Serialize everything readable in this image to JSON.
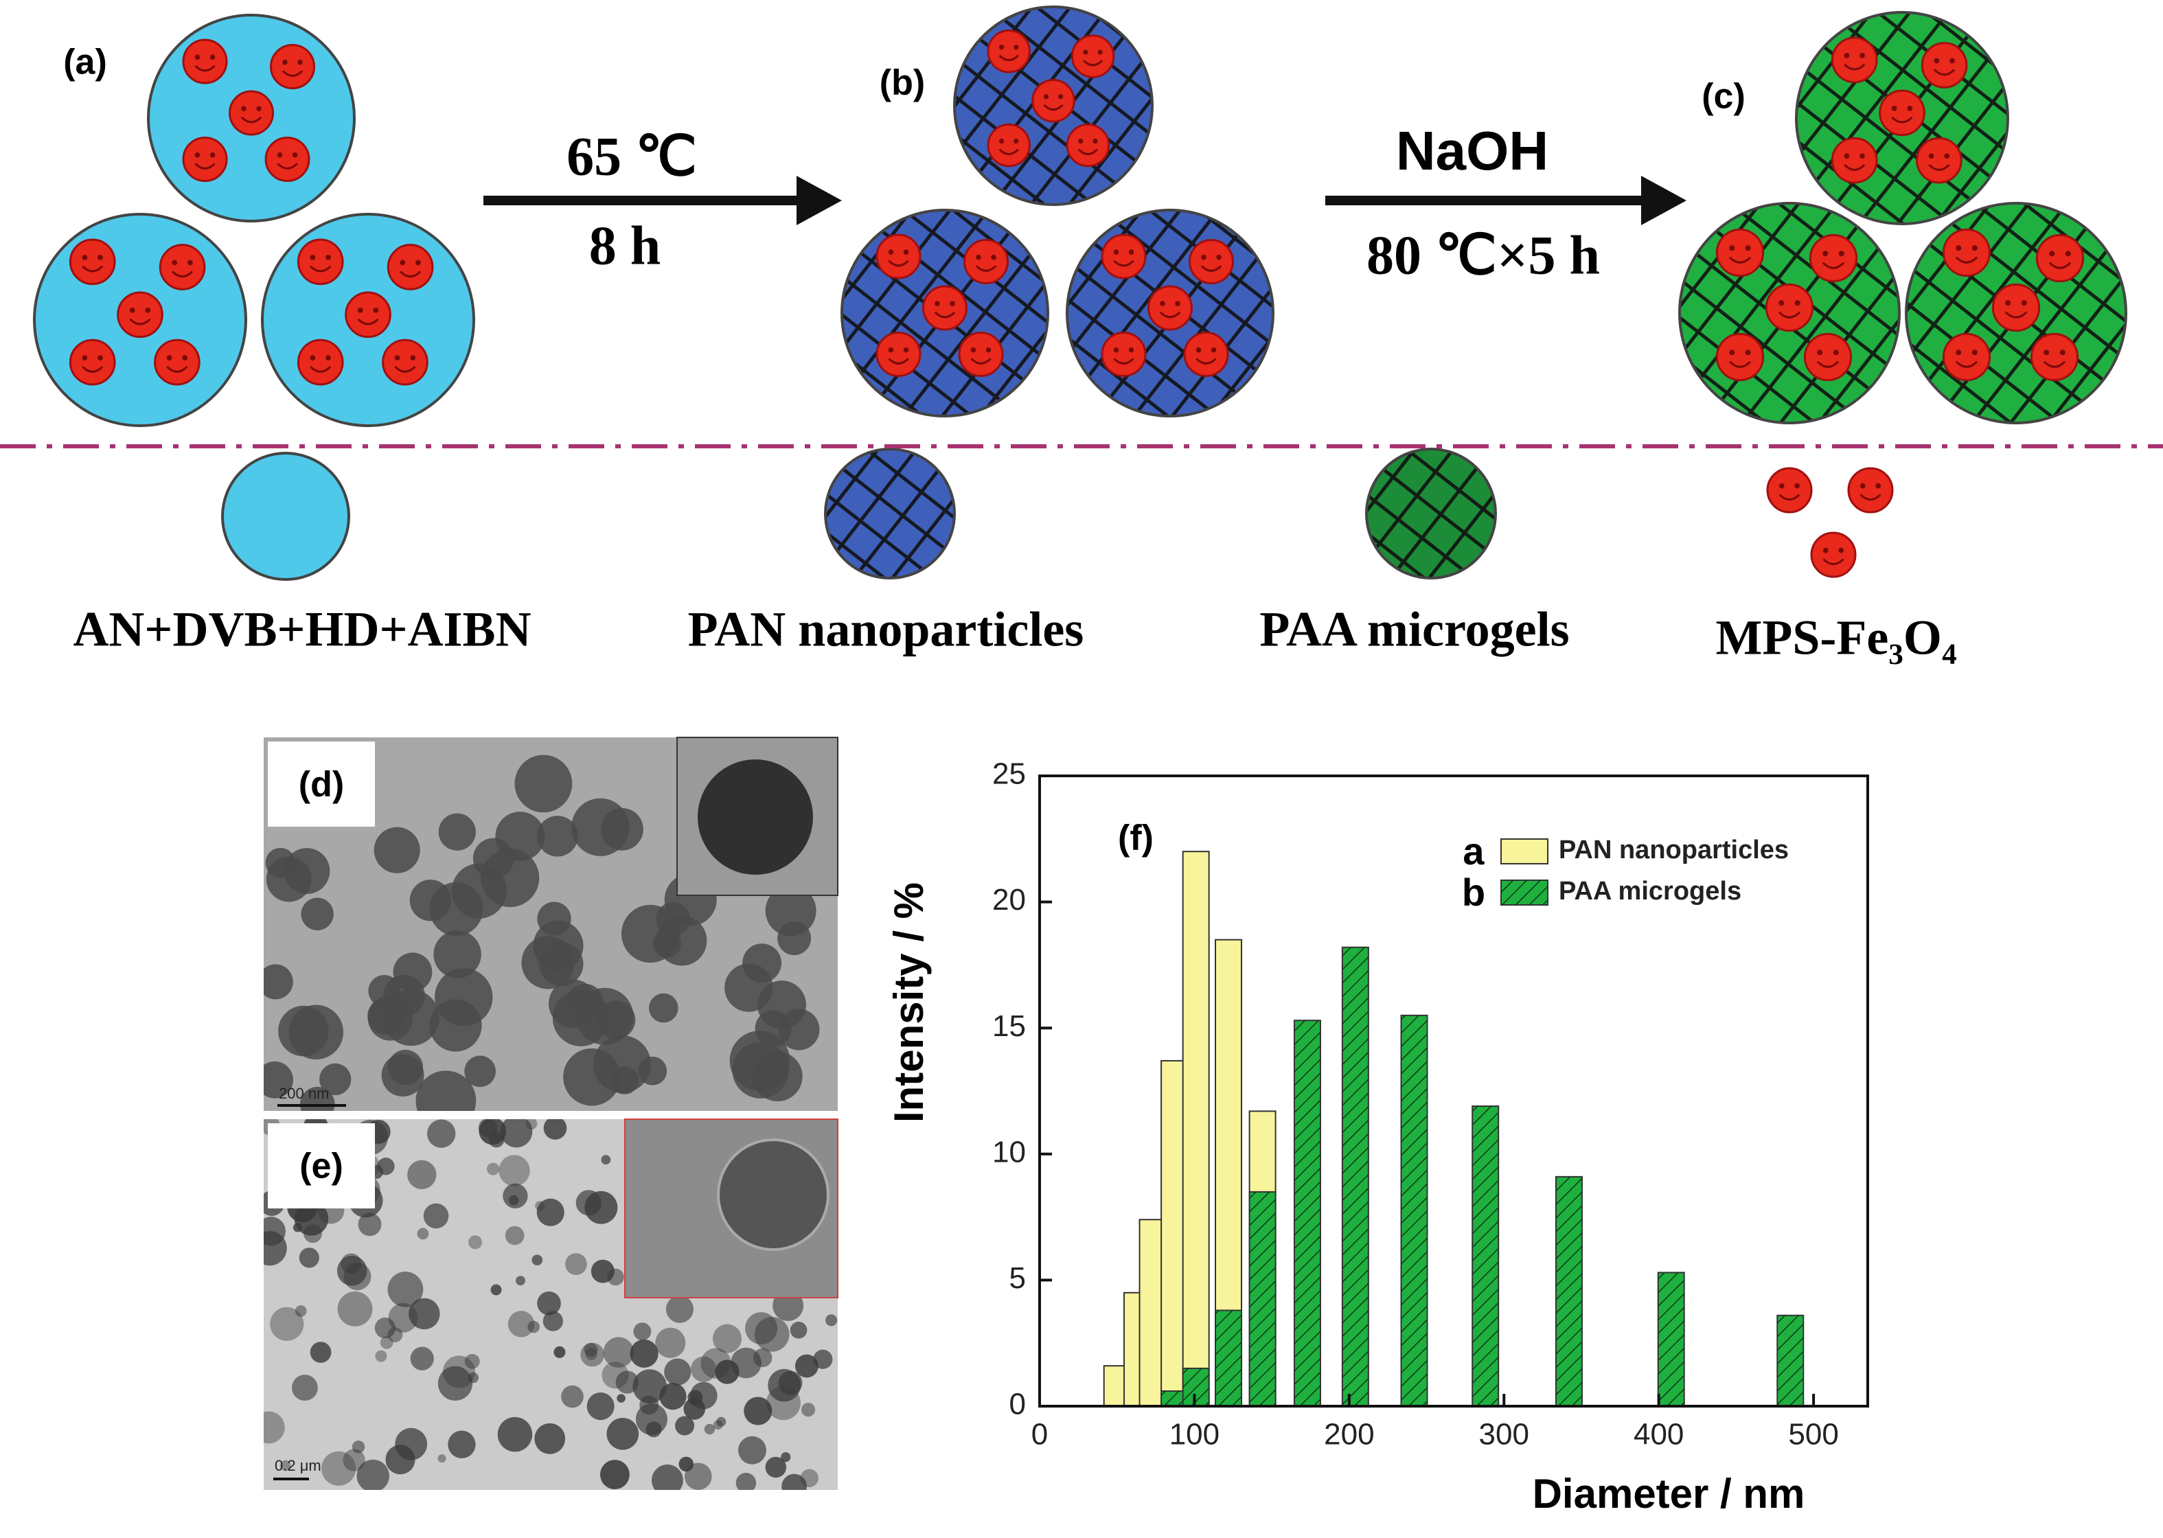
{
  "schematic": {
    "panel_labels": [
      "(a)",
      "(b)",
      "(c)"
    ],
    "arrow1": {
      "top": "65 ℃",
      "bottom": "8 h"
    },
    "arrow2": {
      "top": "NaOH",
      "bottom": "80 ℃×5 h"
    },
    "components": [
      "AN+DVB+HD+AIBN",
      "PAN nanoparticles",
      "PAA microgels",
      "MPS-Fe₃O₄"
    ]
  },
  "tem": {
    "panels": [
      {
        "label": "(d)",
        "scale_bar": "200 nm"
      },
      {
        "label": "(e)",
        "scale_bar": "0.2 μm"
      }
    ]
  },
  "chart_data": {
    "type": "bar",
    "panel_label": "(f)",
    "x_label": "Diameter / nm",
    "y_label": "Intensity / %",
    "x": [
      50,
      63,
      73,
      87,
      101,
      122,
      144,
      173,
      204,
      242,
      288,
      342,
      408,
      485
    ],
    "series": [
      {
        "key": "a",
        "name": "PAN nanoparticles",
        "color": "#f8f49c",
        "hatch": false,
        "values": [
          1.6,
          4.5,
          7.4,
          13.7,
          22,
          18.5,
          11.7,
          null,
          null,
          null,
          null,
          null,
          null,
          null
        ]
      },
      {
        "key": "b",
        "name": "PAA microgels",
        "color": "#1fb040",
        "hatch": true,
        "values": [
          null,
          null,
          null,
          0.6,
          1.5,
          3.8,
          8.5,
          15.3,
          18.2,
          15.5,
          11.9,
          9.1,
          5.3,
          3.6
        ]
      }
    ],
    "xlim": [
      0,
      535
    ],
    "xticks": [
      0,
      100,
      200,
      300,
      400,
      500
    ],
    "ylim": [
      0,
      25
    ],
    "yticks": [
      0,
      5,
      10,
      15,
      20,
      25
    ]
  }
}
